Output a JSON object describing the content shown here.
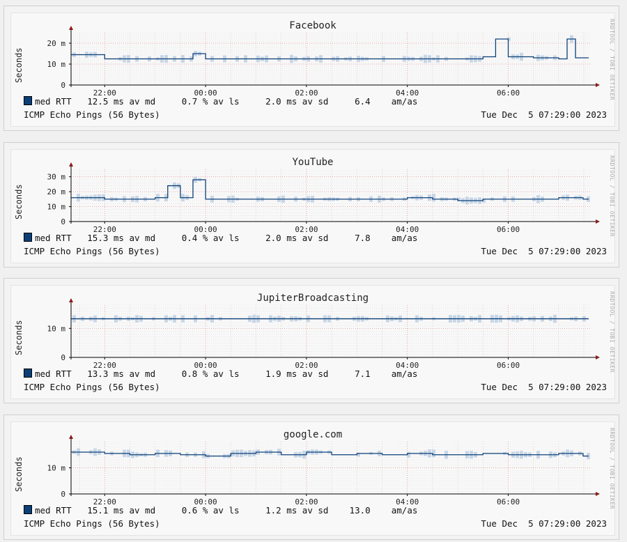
{
  "side_label": "RRDTOOL / TOBI OETIKER",
  "y_axis_label": "Seconds",
  "x_ticks": [
    "22:00",
    "00:00",
    "02:00",
    "04:00",
    "06:00"
  ],
  "legend": {
    "series_name": "med RTT",
    "color": "#0b3f78",
    "band_color": "#c7d6e6",
    "columns": [
      "av md",
      "% av ls",
      "ms av sd",
      "am/as"
    ]
  },
  "footer": {
    "probe": "ICMP Echo Pings (56 Bytes)",
    "timestamp": "Tue Dec  5 07:29:00 2023"
  },
  "chart_data": [
    {
      "type": "line",
      "title": "Facebook",
      "ylabel": "Seconds",
      "y_ticks": [
        "0",
        "10 m",
        "20 m"
      ],
      "ylim": [
        0,
        25
      ],
      "stats": {
        "median": "12.5 ms",
        "loss": "0.7",
        "sd": "2.0",
        "am_as": "6.4"
      },
      "x": [
        "21:30",
        "22:00",
        "22:30",
        "23:00",
        "23:30",
        "23:45",
        "00:00",
        "00:30",
        "01:00",
        "01:30",
        "02:00",
        "02:30",
        "03:00",
        "03:30",
        "04:00",
        "04:30",
        "05:00",
        "05:30",
        "05:45",
        "06:00",
        "06:30",
        "07:00",
        "07:10",
        "07:20",
        "07:29"
      ],
      "values": [
        14.5,
        12.5,
        12.5,
        12.5,
        12.5,
        15,
        12.5,
        12.5,
        12.5,
        12.5,
        12.5,
        12.5,
        12.5,
        12.5,
        12.5,
        12.5,
        12.5,
        13.5,
        22,
        13.5,
        13,
        12.5,
        22,
        13,
        13
      ]
    },
    {
      "type": "line",
      "title": "YouTube",
      "ylabel": "Seconds",
      "y_ticks": [
        "0",
        "10 m",
        "20 m",
        "30 m"
      ],
      "ylim": [
        0,
        35
      ],
      "stats": {
        "median": "15.3 ms",
        "loss": "0.4",
        "sd": "2.0",
        "am_as": "7.8"
      },
      "x": [
        "21:30",
        "22:00",
        "22:30",
        "23:00",
        "23:15",
        "23:30",
        "23:45",
        "00:00",
        "00:30",
        "01:00",
        "01:30",
        "02:00",
        "02:30",
        "03:00",
        "03:30",
        "04:00",
        "04:30",
        "05:00",
        "05:30",
        "06:00",
        "06:30",
        "07:00",
        "07:29"
      ],
      "values": [
        16,
        15,
        15,
        16,
        24,
        16,
        28,
        15,
        15,
        15,
        15,
        15,
        15,
        15,
        15,
        16,
        15,
        14,
        15,
        15,
        15,
        16,
        15
      ]
    },
    {
      "type": "line",
      "title": "JupiterBroadcasting",
      "ylabel": "Seconds",
      "y_ticks": [
        "0",
        "10 m"
      ],
      "ylim": [
        0,
        18
      ],
      "stats": {
        "median": "13.3 ms",
        "loss": "0.8",
        "sd": "1.9",
        "am_as": "7.1"
      },
      "x": [
        "21:30",
        "22:00",
        "22:30",
        "23:00",
        "23:30",
        "00:00",
        "00:30",
        "01:00",
        "01:30",
        "02:00",
        "02:30",
        "03:00",
        "03:30",
        "04:00",
        "04:30",
        "05:00",
        "05:30",
        "06:00",
        "06:30",
        "07:00",
        "07:29"
      ],
      "values": [
        13.3,
        13.3,
        13.3,
        13.3,
        13.3,
        13.3,
        13.3,
        13.3,
        13.3,
        13.3,
        13.3,
        13.3,
        13.3,
        13.3,
        13.3,
        13.3,
        13.3,
        13.3,
        13.3,
        13.3,
        13.3
      ]
    },
    {
      "type": "line",
      "title": "google.com",
      "ylabel": "Seconds",
      "y_ticks": [
        "0",
        "10 m"
      ],
      "ylim": [
        0,
        20
      ],
      "stats": {
        "median": "15.1 ms",
        "loss": "0.6",
        "sd": "1.2",
        "am_as": "13.0"
      },
      "x": [
        "21:30",
        "22:00",
        "22:30",
        "23:00",
        "23:30",
        "00:00",
        "00:30",
        "01:00",
        "01:30",
        "02:00",
        "02:30",
        "03:00",
        "03:30",
        "04:00",
        "04:30",
        "05:00",
        "05:30",
        "06:00",
        "06:30",
        "07:00",
        "07:29"
      ],
      "values": [
        16,
        15.5,
        15,
        15.5,
        15,
        14.5,
        15.5,
        16,
        15,
        16,
        15,
        15.5,
        15,
        15.5,
        15,
        15,
        15.5,
        15,
        15,
        15.5,
        14.5
      ]
    }
  ]
}
